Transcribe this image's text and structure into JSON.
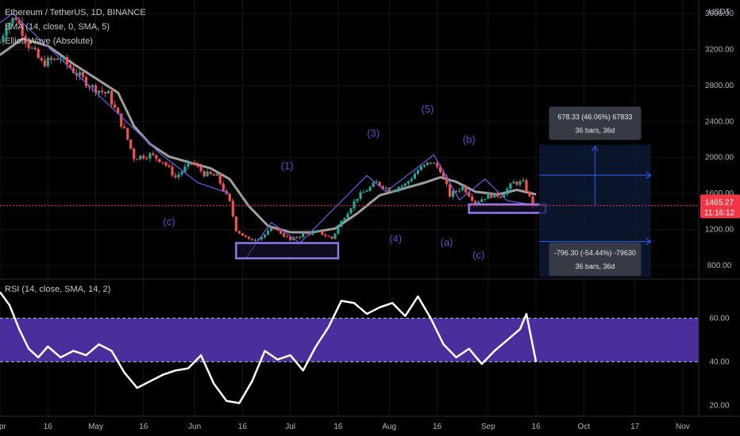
{
  "legend": {
    "symbol": "Ethereum / TetherUS, 1D, BINANCE",
    "ema": "EMA (14, close, 0, SMA, 5)",
    "elliott": "Elliott Wave (Absolute)",
    "rsi": "RSI (14, close, SMA, 14, 2)"
  },
  "price_axis_unit": "USDT",
  "last_price": {
    "value": "1465.27",
    "countdown": "11:16:12"
  },
  "measure_up": {
    "line1": "678.33 (46.06%) 67833",
    "line2": "36 bars, 36d"
  },
  "measure_down": {
    "line1": "-796.30 (-54.44%) -79630",
    "line2": "36 bars, 36d"
  },
  "wave_labels": [
    {
      "text": "(c)",
      "x": "2022-05-24",
      "y": 1250
    },
    {
      "text": "(1)",
      "x": "2022-06-30",
      "y": 1870
    },
    {
      "text": "(3)",
      "x": "2022-07-27",
      "y": 2230
    },
    {
      "text": "(4)",
      "x": "2022-08-03",
      "y": 1060
    },
    {
      "text": "(5)",
      "x": "2022-08-13",
      "y": 2500
    },
    {
      "text": "(b)",
      "x": "2022-08-26",
      "y": 2160
    },
    {
      "text": "(a)",
      "x": "2022-08-19",
      "y": 1020
    },
    {
      "text": "(c)",
      "x": "2022-08-29",
      "y": 880
    }
  ],
  "colors": {
    "accent": "#6c5ce7",
    "rsi_band": "#4a2f9c",
    "up": "#26a69a",
    "down": "#ef5350",
    "ema": "#9e9e9e",
    "last_price": "#f23645"
  },
  "chart_data": [
    {
      "type": "candlestick",
      "title": "Ethereum / TetherUS, 1D, BINANCE",
      "ylabel": "USDT",
      "x_range": [
        "2022-04-01",
        "2022-11-06"
      ],
      "ylim": [
        650,
        3750
      ],
      "y_ticks": [
        800,
        1200,
        1600,
        2000,
        2400,
        2800,
        3200,
        3600
      ],
      "x_tick_labels": [
        "Apr",
        "16",
        "May",
        "16",
        "Jun",
        "16",
        "Jul",
        "16",
        "Aug",
        "16",
        "Sep",
        "16",
        "Oct",
        "17",
        "Nov"
      ],
      "x_tick_dates": [
        "2022-04-01",
        "2022-04-16",
        "2022-05-01",
        "2022-05-16",
        "2022-06-01",
        "2022-06-16",
        "2022-07-01",
        "2022-07-16",
        "2022-08-01",
        "2022-08-16",
        "2022-09-01",
        "2022-09-16",
        "2022-10-01",
        "2022-10-17",
        "2022-11-01"
      ],
      "close_series": {
        "x": [
          "2022-04-01",
          "2022-04-03",
          "2022-04-06",
          "2022-04-10",
          "2022-04-14",
          "2022-04-20",
          "2022-04-26",
          "2022-04-30",
          "2022-05-05",
          "2022-05-10",
          "2022-05-13",
          "2022-05-18",
          "2022-05-22",
          "2022-05-26",
          "2022-05-31",
          "2022-06-04",
          "2022-06-08",
          "2022-06-12",
          "2022-06-14",
          "2022-06-18",
          "2022-06-22",
          "2022-06-26",
          "2022-07-01",
          "2022-07-05",
          "2022-07-10",
          "2022-07-14",
          "2022-07-18",
          "2022-07-22",
          "2022-07-28",
          "2022-08-01",
          "2022-08-06",
          "2022-08-10",
          "2022-08-14",
          "2022-08-17",
          "2022-08-20",
          "2022-08-24",
          "2022-08-28",
          "2022-09-01",
          "2022-09-05",
          "2022-09-09",
          "2022-09-12",
          "2022-09-15",
          "2022-09-16"
        ],
        "y": [
          3280,
          3480,
          3560,
          3250,
          3050,
          3100,
          2900,
          2780,
          2700,
          2300,
          2000,
          2030,
          1960,
          1780,
          1950,
          1820,
          1790,
          1500,
          1200,
          1080,
          1120,
          1220,
          1080,
          1150,
          1170,
          1100,
          1350,
          1560,
          1720,
          1640,
          1700,
          1860,
          1950,
          1870,
          1580,
          1680,
          1500,
          1580,
          1580,
          1720,
          1720,
          1470,
          1465
        ]
      },
      "ema_series": {
        "name": "EMA (14, close, 0, SMA, 5)",
        "x": [
          "2022-04-01",
          "2022-04-08",
          "2022-04-16",
          "2022-04-24",
          "2022-05-01",
          "2022-05-08",
          "2022-05-13",
          "2022-05-18",
          "2022-05-24",
          "2022-05-30",
          "2022-06-06",
          "2022-06-12",
          "2022-06-18",
          "2022-06-24",
          "2022-07-01",
          "2022-07-08",
          "2022-07-15",
          "2022-07-22",
          "2022-07-29",
          "2022-08-05",
          "2022-08-12",
          "2022-08-17",
          "2022-08-22",
          "2022-08-28",
          "2022-09-04",
          "2022-09-10",
          "2022-09-16"
        ],
        "y": [
          3140,
          3320,
          3240,
          3040,
          2880,
          2720,
          2350,
          2150,
          2010,
          1950,
          1880,
          1760,
          1460,
          1240,
          1170,
          1170,
          1210,
          1380,
          1580,
          1650,
          1720,
          1780,
          1730,
          1620,
          1590,
          1640,
          1590
        ]
      },
      "elliott_wave_segments": [
        {
          "x": [
            "2022-04-01",
            "2022-04-05",
            "2022-05-21",
            "2022-06-02",
            "2022-06-12"
          ],
          "y": [
            3500,
            3600,
            2050,
            1720,
            1600
          ]
        },
        {
          "x": [
            "2022-06-17",
            "2022-06-25",
            "2022-07-04",
            "2022-07-25",
            "2022-07-31",
            "2022-08-15",
            "2022-08-23",
            "2022-08-31",
            "2022-09-07",
            "2022-09-16"
          ],
          "y": [
            880,
            1280,
            1050,
            1800,
            1620,
            2030,
            1530,
            1760,
            1520,
            1470
          ]
        }
      ],
      "last_price": 1465.27,
      "highlight_boxes": [
        {
          "x": [
            "2022-06-14",
            "2022-07-16"
          ],
          "y": [
            880,
            1050
          ]
        },
        {
          "x": [
            "2022-08-26",
            "2022-09-19"
          ],
          "y": [
            1385,
            1480
          ]
        }
      ],
      "projection": {
        "x": [
          "2022-09-17",
          "2022-10-22"
        ],
        "up": {
          "from": 1465,
          "to": 2143
        },
        "down": {
          "from": 1465,
          "to": 669
        }
      }
    },
    {
      "type": "line",
      "title": "RSI (14, close, SMA, 14, 2)",
      "ylim": [
        15,
        78
      ],
      "y_ticks": [
        20,
        40,
        60
      ],
      "band": [
        40,
        60
      ],
      "x": [
        "2022-04-01",
        "2022-04-04",
        "2022-04-07",
        "2022-04-10",
        "2022-04-13",
        "2022-04-16",
        "2022-04-20",
        "2022-04-24",
        "2022-04-28",
        "2022-05-02",
        "2022-05-06",
        "2022-05-10",
        "2022-05-14",
        "2022-05-18",
        "2022-05-22",
        "2022-05-26",
        "2022-05-30",
        "2022-06-03",
        "2022-06-07",
        "2022-06-11",
        "2022-06-15",
        "2022-06-19",
        "2022-06-23",
        "2022-06-27",
        "2022-07-01",
        "2022-07-05",
        "2022-07-09",
        "2022-07-13",
        "2022-07-17",
        "2022-07-21",
        "2022-07-25",
        "2022-07-29",
        "2022-08-02",
        "2022-08-06",
        "2022-08-10",
        "2022-08-14",
        "2022-08-18",
        "2022-08-22",
        "2022-08-26",
        "2022-08-30",
        "2022-09-03",
        "2022-09-07",
        "2022-09-11",
        "2022-09-13",
        "2022-09-16"
      ],
      "values": [
        72,
        66,
        55,
        46,
        42,
        47,
        42,
        45,
        43,
        48,
        45,
        35,
        28,
        31,
        34,
        36,
        37,
        43,
        30,
        22,
        21,
        31,
        45,
        41,
        43,
        36,
        47,
        56,
        68,
        67,
        62,
        65,
        67,
        61,
        70,
        60,
        48,
        42,
        46,
        39,
        45,
        50,
        55,
        62,
        40
      ]
    }
  ]
}
